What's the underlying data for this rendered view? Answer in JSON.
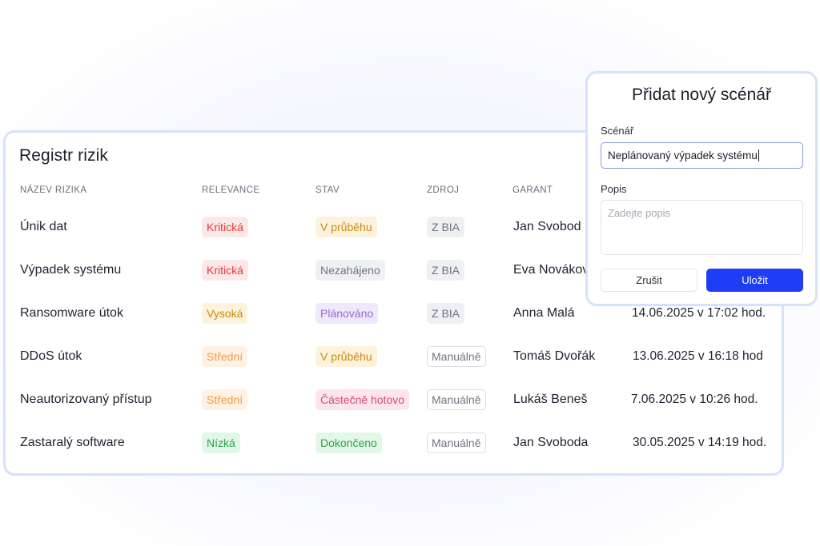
{
  "register": {
    "title": "Registr rizik",
    "columns": {
      "name": "NÁZEV RIZIKA",
      "relevance": "RELEVANCE",
      "status": "STAV",
      "source": "ZDROJ",
      "owner": "GARANT"
    },
    "rows": [
      {
        "name": "Únik dat",
        "relevance": "Kritická",
        "status": "V průběhu",
        "source": "Z BIA",
        "owner": "Jan Svobod",
        "date": ""
      },
      {
        "name": "Výpadek systému",
        "relevance": "Kritická",
        "status": "Nezahájeno",
        "source": "Z BIA",
        "owner": "Eva Novákov",
        "date": ""
      },
      {
        "name": "Ransomware útok",
        "relevance": "Vysoká",
        "status": "Plánováno",
        "source": "Z BIA",
        "owner": "Anna Malá",
        "date": "14.06.2025 v 17:02 hod."
      },
      {
        "name": "DDoS útok",
        "relevance": "Střední",
        "status": "V průběhu",
        "source": "Manuálně",
        "owner": "Tomáš Dvořák",
        "date": "13.06.2025 v 16:18 hod"
      },
      {
        "name": "Neautorizovaný přístup",
        "relevance": "Střední",
        "status": "Částečně hotovo",
        "source": "Manuálně",
        "owner": "Lukáš Beneš",
        "date": "7.06.2025 v 10:26 hod."
      },
      {
        "name": "Zastaralý software",
        "relevance": "Nízká",
        "status": "Dokončeno",
        "source": "Manuálně",
        "owner": "Jan Svoboda",
        "date": "30.05.2025 v 14:19 hod."
      }
    ]
  },
  "modal": {
    "title": "Přidat nový scénář",
    "scenario_label": "Scénář",
    "scenario_value": "Neplánovaný výpadek systému",
    "description_label": "Popis",
    "description_placeholder": "Zadejte popis",
    "cancel_label": "Zrušit",
    "save_label": "Uložit"
  },
  "colors": {
    "accent": "#1f3df5",
    "card_border": "#d6e1fb",
    "critical": "#e03a3a",
    "high": "#c98a12",
    "medium": "#ef9a4a",
    "low": "#2fa34c"
  }
}
